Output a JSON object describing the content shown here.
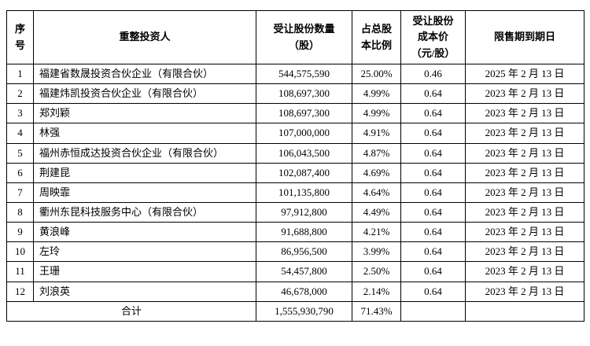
{
  "table": {
    "headers": {
      "no": "序\n号",
      "investor": "重整投资人",
      "shares": "受让股份数量\n（股）",
      "ratio": "占总股\n本比例",
      "cost": "受让股份\n成本价\n（元/股）",
      "lockup": "限售期到期日"
    },
    "rows": [
      {
        "no": "1",
        "investor": "福建省数晟投资合伙企业（有限合伙）",
        "shares": "544,575,590",
        "ratio": "25.00%",
        "cost": "0.46",
        "lockup": "2025 年 2 月 13 日"
      },
      {
        "no": "2",
        "investor": "福建炜凯投资合伙企业（有限合伙）",
        "shares": "108,697,300",
        "ratio": "4.99%",
        "cost": "0.64",
        "lockup": "2023 年 2 月 13 日"
      },
      {
        "no": "3",
        "investor": "郑刘颖",
        "shares": "108,697,300",
        "ratio": "4.99%",
        "cost": "0.64",
        "lockup": "2023 年 2 月 13 日"
      },
      {
        "no": "4",
        "investor": "林强",
        "shares": "107,000,000",
        "ratio": "4.91%",
        "cost": "0.64",
        "lockup": "2023 年 2 月 13 日"
      },
      {
        "no": "5",
        "investor": "福州赤恒成达投资合伙企业（有限合伙）",
        "shares": "106,043,500",
        "ratio": "4.87%",
        "cost": "0.64",
        "lockup": "2023 年 2 月 13 日"
      },
      {
        "no": "6",
        "investor": "荆建昆",
        "shares": "102,087,400",
        "ratio": "4.69%",
        "cost": "0.64",
        "lockup": "2023 年 2 月 13 日"
      },
      {
        "no": "7",
        "investor": "周映霏",
        "shares": "101,135,800",
        "ratio": "4.64%",
        "cost": "0.64",
        "lockup": "2023 年 2 月 13 日"
      },
      {
        "no": "8",
        "investor": "衢州东昆科技服务中心（有限合伙）",
        "shares": "97,912,800",
        "ratio": "4.49%",
        "cost": "0.64",
        "lockup": "2023 年 2 月 13 日"
      },
      {
        "no": "9",
        "investor": "黄浪峰",
        "shares": "91,688,800",
        "ratio": "4.21%",
        "cost": "0.64",
        "lockup": "2023 年 2 月 13 日"
      },
      {
        "no": "10",
        "investor": "左玲",
        "shares": "86,956,500",
        "ratio": "3.99%",
        "cost": "0.64",
        "lockup": "2023 年 2 月 13 日"
      },
      {
        "no": "11",
        "investor": "王珊",
        "shares": "54,457,800",
        "ratio": "2.50%",
        "cost": "0.64",
        "lockup": "2023 年 2 月 13 日"
      },
      {
        "no": "12",
        "investor": "刘浪英",
        "shares": "46,678,000",
        "ratio": "2.14%",
        "cost": "0.64",
        "lockup": "2023 年 2 月 13 日"
      }
    ],
    "total": {
      "label": "合计",
      "shares": "1,555,930,790",
      "ratio": "71.43%",
      "cost": "",
      "lockup": ""
    }
  }
}
